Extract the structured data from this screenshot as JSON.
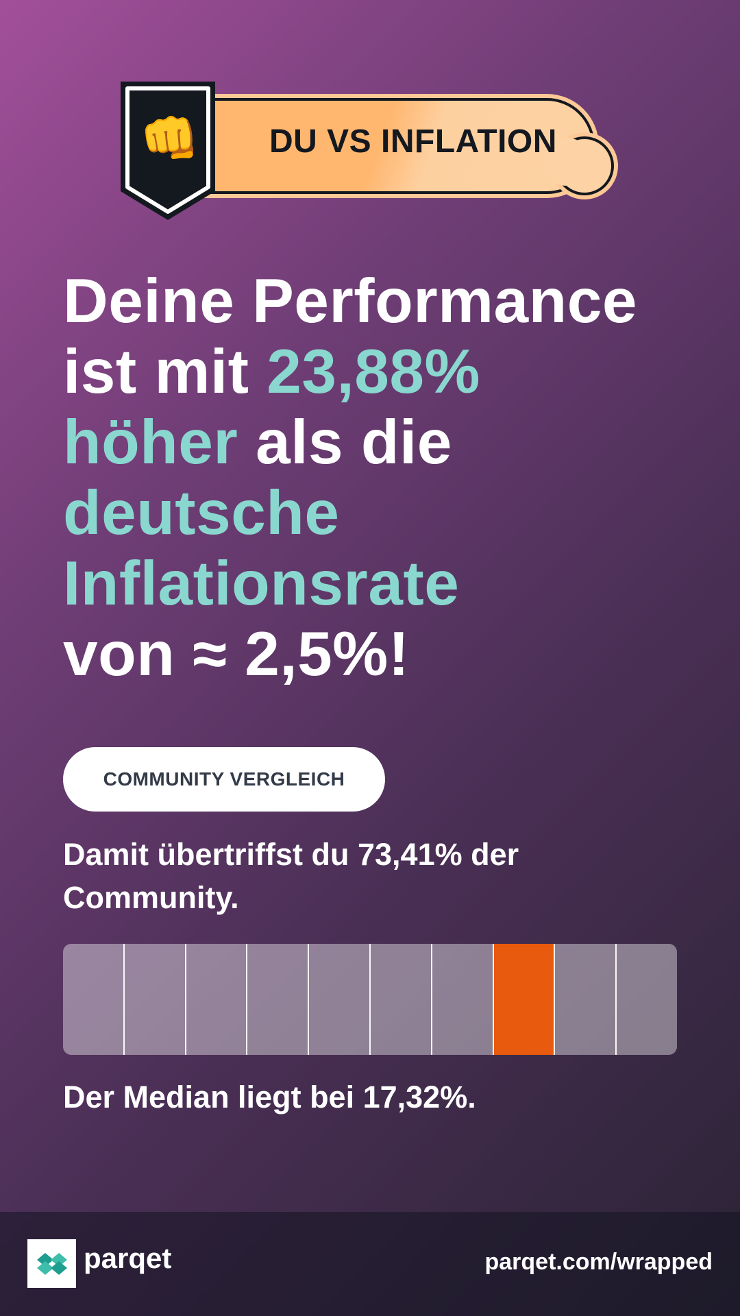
{
  "badge": {
    "title": "DU VS INFLATION",
    "icon": "fist-bump-icon",
    "emoji": "👊"
  },
  "headline": {
    "line1": "Deine Performance",
    "line2_pre": "ist mit ",
    "line2_highlight": "23,88%",
    "line3_highlight": "höher",
    "line3_post": " als die",
    "line4_highlight": "deutsche",
    "line5_highlight": "Inflationsrate",
    "line6": "von ≈ 2,5%!"
  },
  "community": {
    "pill_label": "COMMUNITY VERGLEICH",
    "text": "Damit übertriffst du 73,41% der Community.",
    "segments": 10,
    "active_segment": 8,
    "median_text": "Der Median liegt bei 17,32%."
  },
  "footer": {
    "brand": "parqet",
    "logo_icon": "parqet-logo-icon",
    "url": "parqet.com/wrapped"
  },
  "colors": {
    "highlight": "#8ad7cf",
    "active_bar": "#e85a0d",
    "badge_orange": "#ffb770"
  }
}
